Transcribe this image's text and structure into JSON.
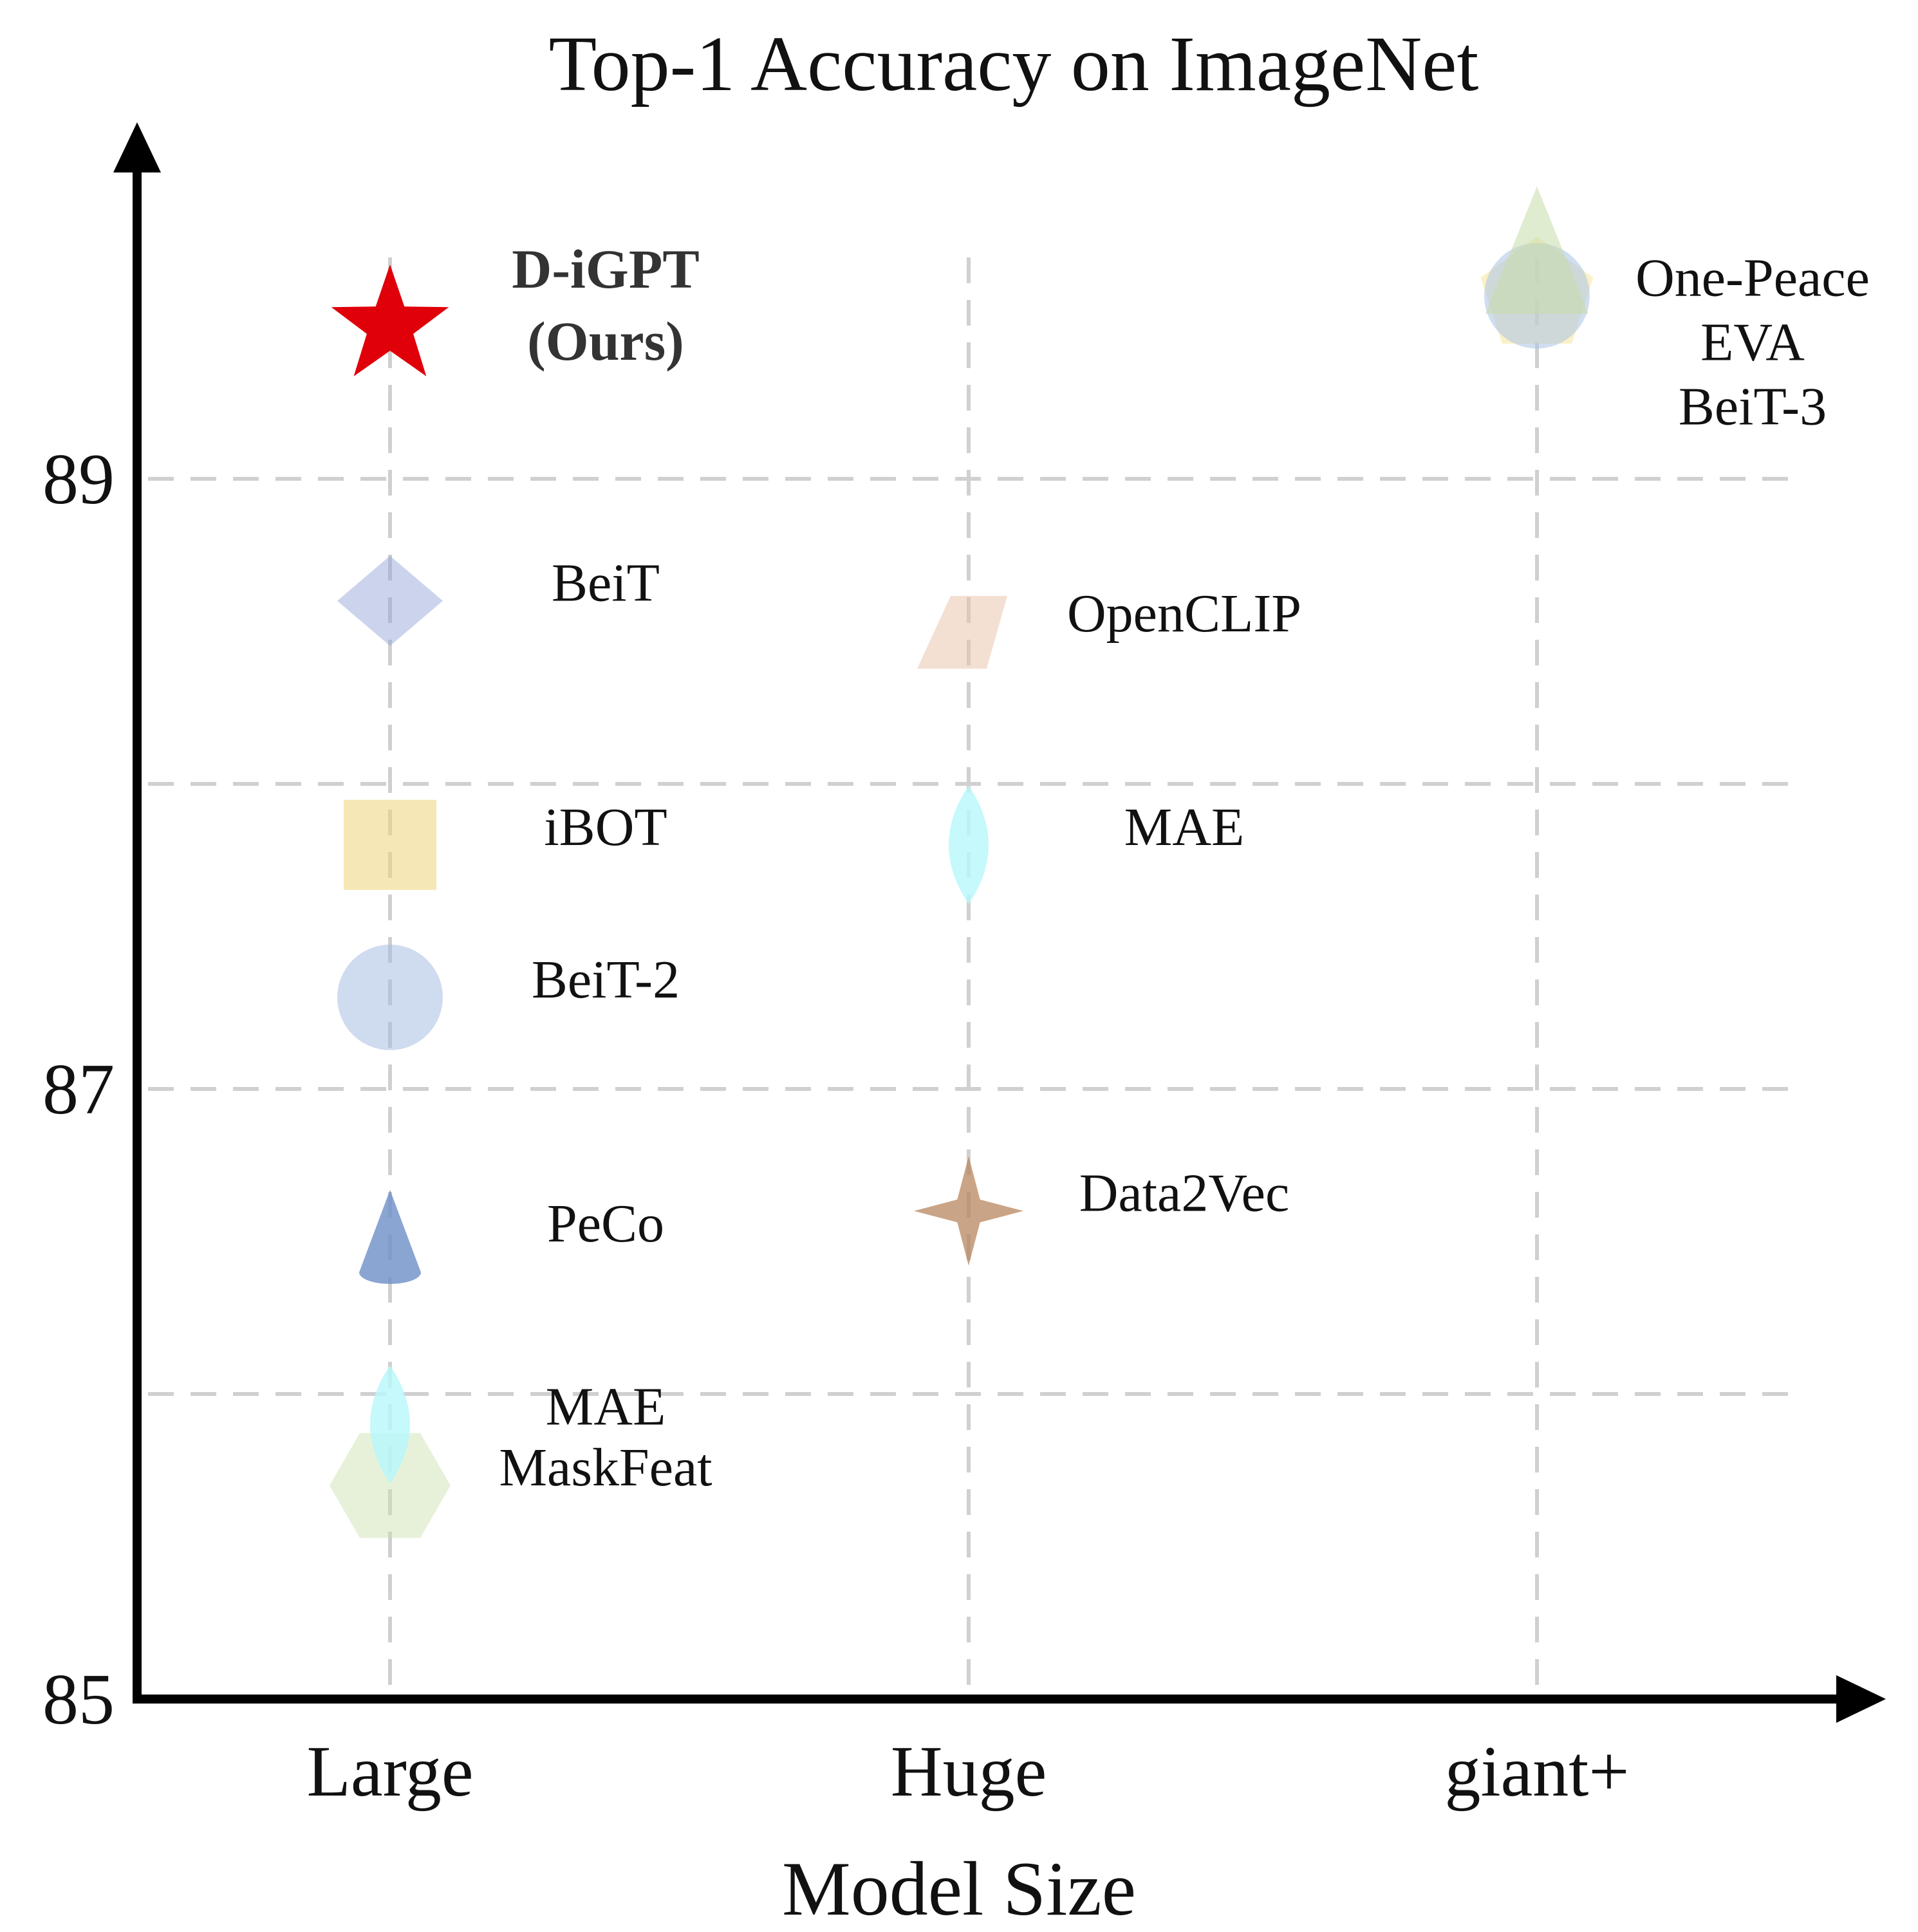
{
  "chart_data": {
    "type": "scatter",
    "title": "Top-1 Accuracy on ImageNet",
    "xlabel": "Model Size",
    "ylabel": "",
    "categories": [
      "Large",
      "Huge",
      "giant+"
    ],
    "yticks": [
      85,
      87,
      89
    ],
    "ylim": [
      85,
      90
    ],
    "grid": true,
    "points": [
      {
        "label": "D-iGPT\n(Ours)",
        "x": "Large",
        "y": 89.5,
        "marker": "star",
        "color": "#e0000a",
        "opacity": 1.0,
        "bold": true
      },
      {
        "label": "BeiT",
        "x": "Large",
        "y": 88.6,
        "marker": "diamond",
        "color": "#8d9fd8",
        "opacity": 0.45
      },
      {
        "label": "iBOT",
        "x": "Large",
        "y": 87.8,
        "marker": "square",
        "color": "#efd47a",
        "opacity": 0.55
      },
      {
        "label": "BeiT-2",
        "x": "Large",
        "y": 87.3,
        "marker": "circle",
        "color": "#9fb8df",
        "opacity": 0.5
      },
      {
        "label": "PeCo",
        "x": "Large",
        "y": 86.5,
        "marker": "cone",
        "color": "#6e8fc8",
        "opacity": 0.8
      },
      {
        "label": "MAE",
        "x": "Large",
        "y": 85.9,
        "marker": "lens",
        "color": "#b6f8fb",
        "opacity": 0.8
      },
      {
        "label": "MaskFeat",
        "x": "Large",
        "y": 85.7,
        "marker": "hexagon",
        "color": "#c9dfae",
        "opacity": 0.45
      },
      {
        "label": "OpenCLIP",
        "x": "Huge",
        "y": 88.5,
        "marker": "parallelogram",
        "color": "#e7c2a8",
        "opacity": 0.5
      },
      {
        "label": "MAE",
        "x": "Huge",
        "y": 87.8,
        "marker": "lens",
        "color": "#b6f8fb",
        "opacity": 0.8
      },
      {
        "label": "Data2Vec",
        "x": "Huge",
        "y": 86.6,
        "marker": "four-point-star",
        "color": "#b8865e",
        "opacity": 0.75
      },
      {
        "label": "One-Peace",
        "x": "giant+",
        "y": 89.6,
        "marker": "pentagon",
        "color": "#f7e8a3",
        "opacity": 0.6
      },
      {
        "label": "EVA",
        "x": "giant+",
        "y": 89.6,
        "marker": "triangle",
        "color": "#c7dcaa",
        "opacity": 0.55
      },
      {
        "label": "BeiT-3",
        "x": "giant+",
        "y": 89.6,
        "marker": "circle",
        "color": "#a9c2e6",
        "opacity": 0.55
      }
    ]
  }
}
